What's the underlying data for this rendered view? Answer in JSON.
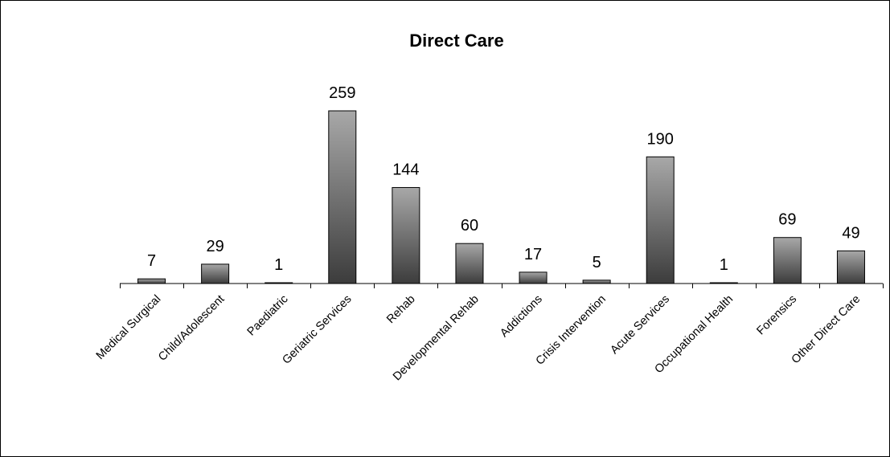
{
  "chart_data": {
    "type": "bar",
    "title": "Direct Care",
    "categories": [
      "Medical Surgical",
      "Child/Adolescent",
      "Paediatric",
      "Geriatric Services",
      "Rehab",
      "Developmental Rehab",
      "Addictions",
      "Crisis Intervention",
      "Acute Services",
      "Occupational Health",
      "Forensics",
      "Other Direct Care"
    ],
    "values": [
      7,
      29,
      1,
      259,
      144,
      60,
      17,
      5,
      190,
      1,
      69,
      49
    ],
    "ylim": [
      0,
      259
    ],
    "grid": false,
    "legend": "none",
    "bar_color_top": "#a8a8a8",
    "bar_color_bottom": "#3c3c3c"
  }
}
